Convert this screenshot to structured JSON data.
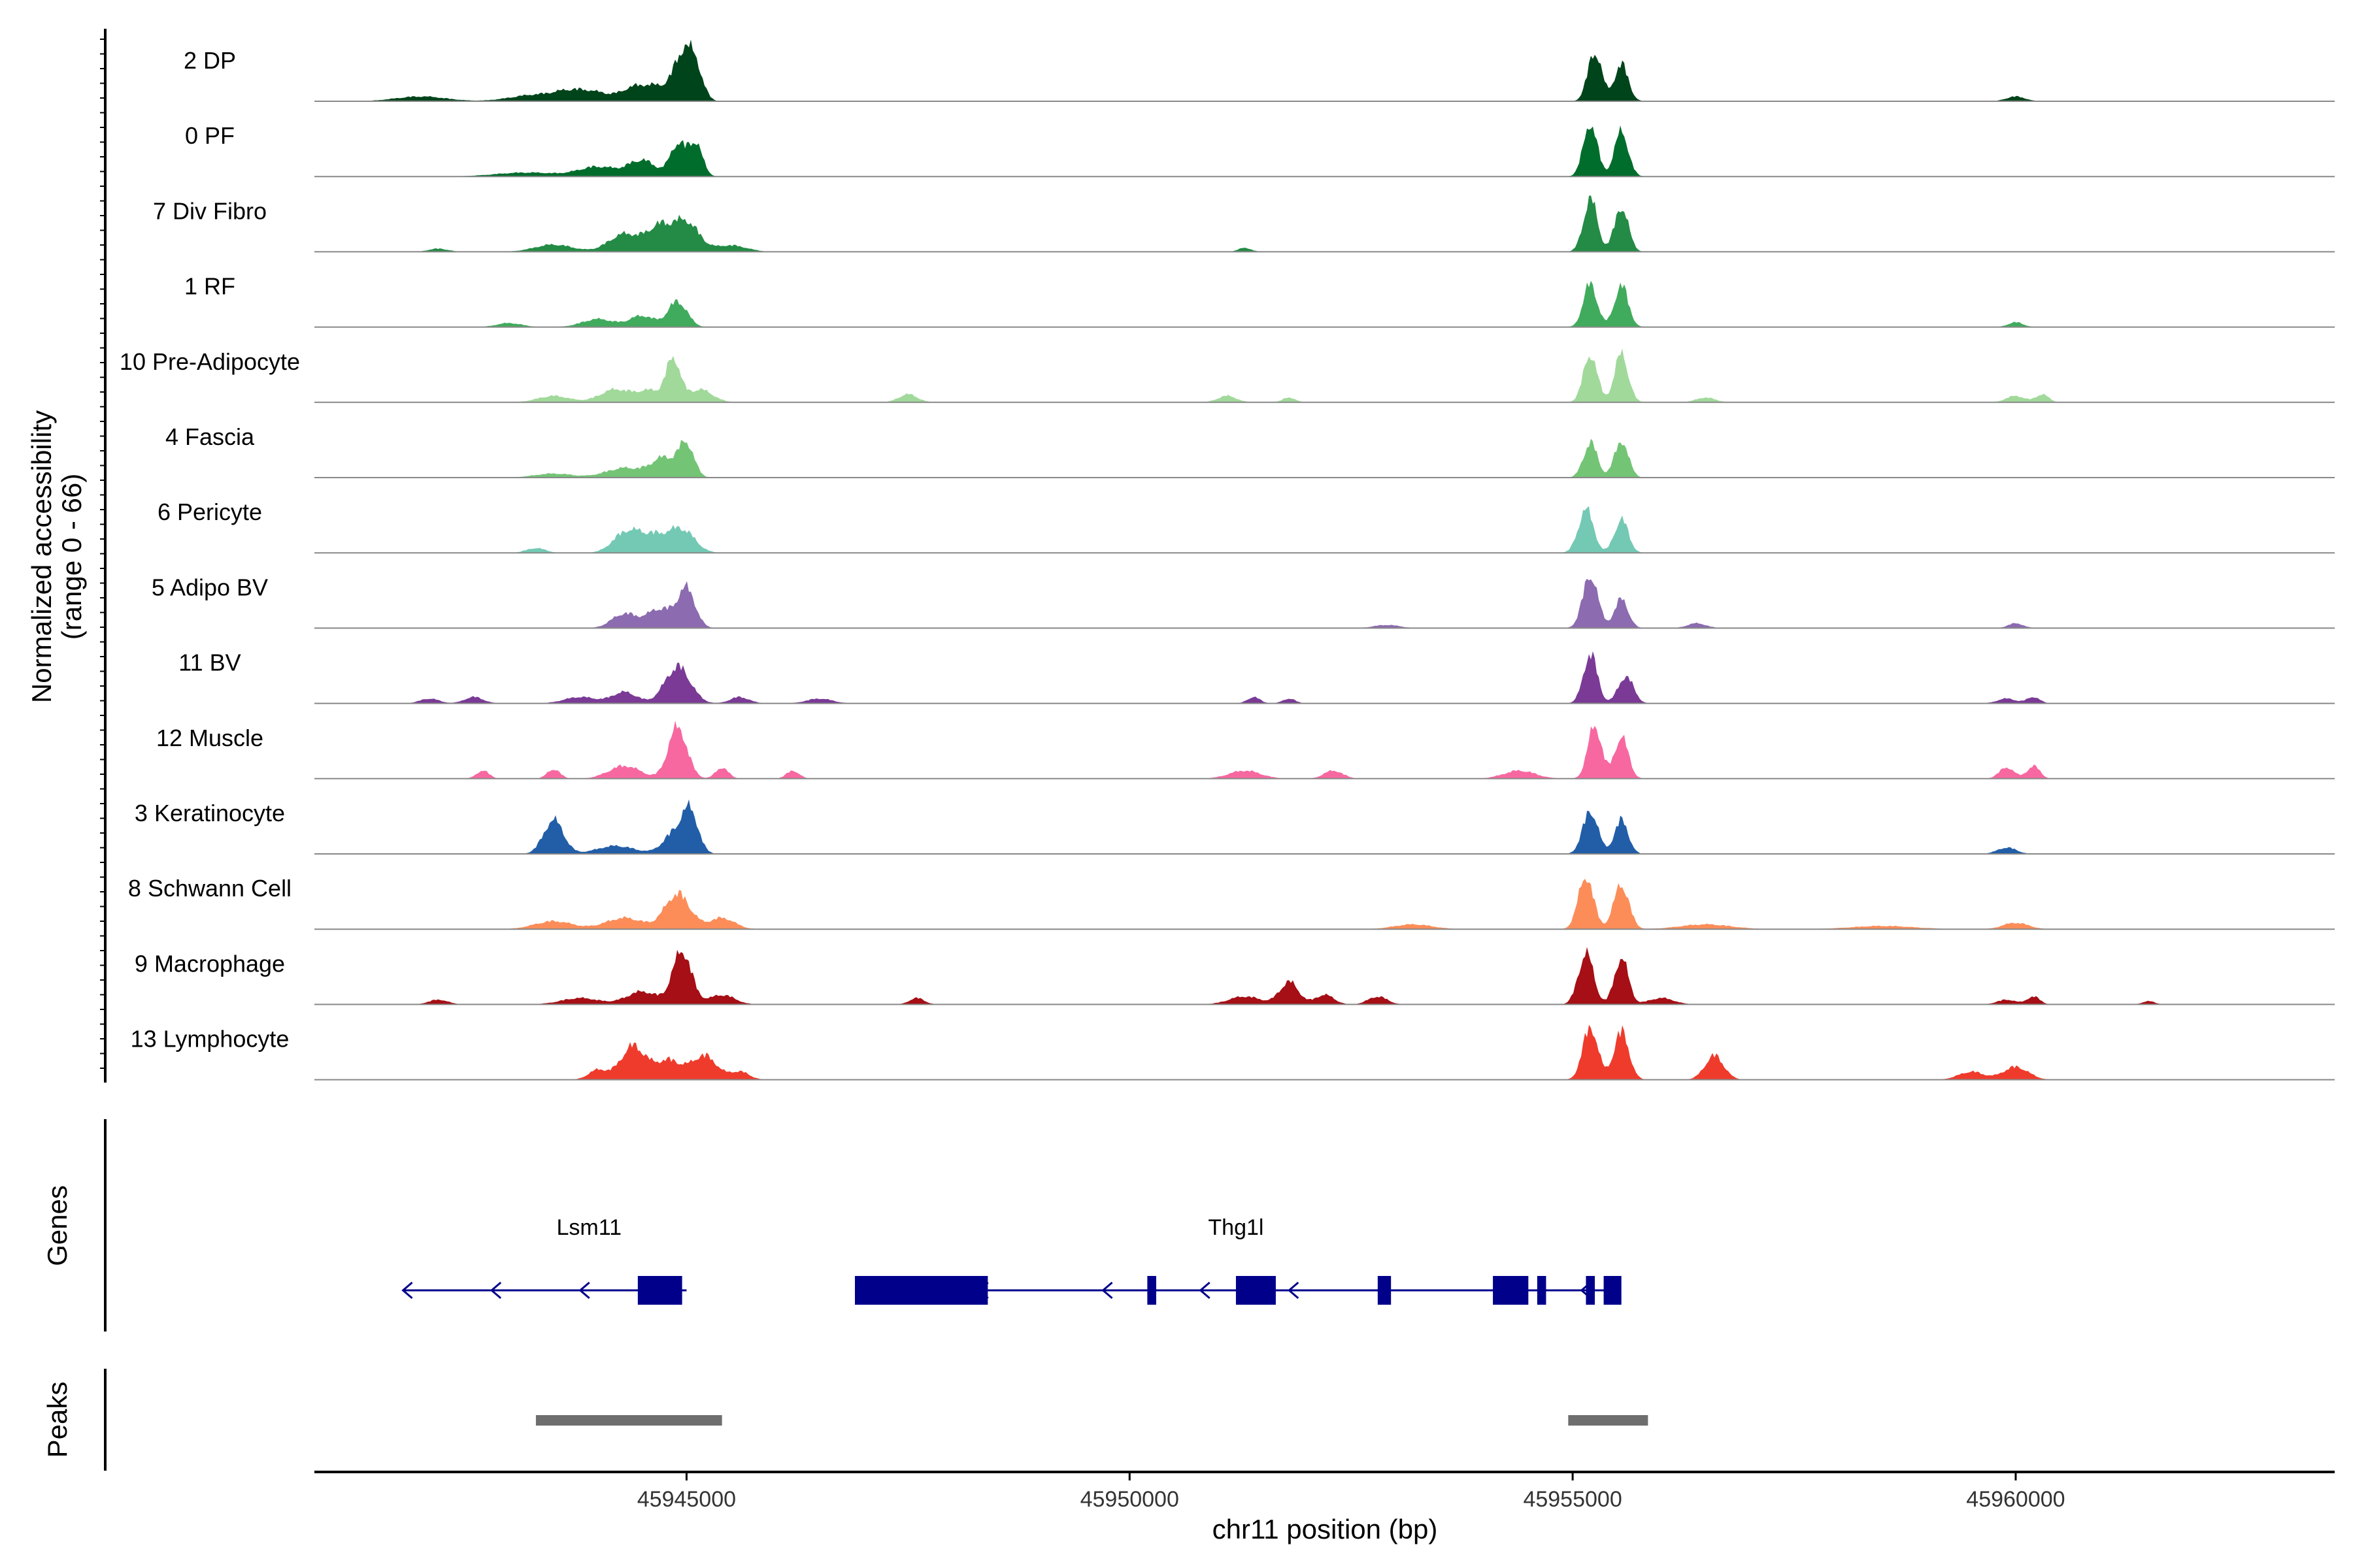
{
  "chart_data": {
    "type": "area",
    "title": "",
    "chromosome": "chr11",
    "xlabel": "chr11 position (bp)",
    "ylabel_line1": "Normalized accessibility",
    "ylabel_line2": "(range 0 - 66)",
    "ylim": [
      0,
      66
    ],
    "xlim": [
      45940800,
      45963600
    ],
    "x_ticks": [
      45945000,
      45950000,
      45955000,
      45960000
    ],
    "x_tick_labels": [
      "45945000",
      "45950000",
      "45955000",
      "45960000"
    ],
    "genes_label": "Genes",
    "peaks_label": "Peaks",
    "tracks": [
      {
        "name": "2 DP",
        "color": "#00441b",
        "peaks": [
          [
            45942000,
            6,
            400
          ],
          [
            45943300,
            8,
            400
          ],
          [
            45943700,
            10,
            250
          ],
          [
            45944000,
            9,
            250
          ],
          [
            45944400,
            14,
            200
          ],
          [
            45944700,
            18,
            250
          ],
          [
            45944950,
            50,
            130
          ],
          [
            45945100,
            42,
            120
          ],
          [
            45955250,
            62,
            110
          ],
          [
            45955550,
            46,
            110
          ],
          [
            45960000,
            6,
            150
          ]
        ]
      },
      {
        "name": "0 PF",
        "color": "#006d2c",
        "peaks": [
          [
            45943200,
            5,
            500
          ],
          [
            45944000,
            12,
            300
          ],
          [
            45944500,
            20,
            220
          ],
          [
            45944900,
            40,
            120
          ],
          [
            45945100,
            42,
            110
          ],
          [
            45955200,
            66,
            110
          ],
          [
            45955550,
            56,
            110
          ]
        ]
      },
      {
        "name": "7 Div Fibro",
        "color": "#238b45",
        "peaks": [
          [
            45942200,
            4,
            150
          ],
          [
            45943500,
            9,
            300
          ],
          [
            45944300,
            22,
            250
          ],
          [
            45944700,
            30,
            200
          ],
          [
            45945000,
            36,
            200
          ],
          [
            45945500,
            8,
            250
          ],
          [
            45951300,
            5,
            100
          ],
          [
            45955200,
            66,
            110
          ],
          [
            45955550,
            56,
            110
          ]
        ]
      },
      {
        "name": "1 RF",
        "color": "#41ab5d",
        "peaks": [
          [
            45943000,
            5,
            200
          ],
          [
            45944000,
            10,
            250
          ],
          [
            45944500,
            14,
            200
          ],
          [
            45944900,
            32,
            150
          ],
          [
            45955200,
            54,
            110
          ],
          [
            45955550,
            52,
            110
          ],
          [
            45960000,
            6,
            120
          ]
        ]
      },
      {
        "name": "10 Pre-Adipocyte",
        "color": "#a1d99b",
        "peaks": [
          [
            45943500,
            8,
            250
          ],
          [
            45944200,
            16,
            250
          ],
          [
            45944600,
            14,
            200
          ],
          [
            45944850,
            52,
            110
          ],
          [
            45945150,
            16,
            200
          ],
          [
            45947500,
            10,
            150
          ],
          [
            45951100,
            8,
            150
          ],
          [
            45951800,
            6,
            100
          ],
          [
            45955200,
            60,
            110
          ],
          [
            45955550,
            60,
            110
          ],
          [
            45956500,
            6,
            150
          ],
          [
            45960000,
            8,
            150
          ],
          [
            45960300,
            10,
            100
          ]
        ]
      },
      {
        "name": "4 Fascia",
        "color": "#74c476",
        "peaks": [
          [
            45943500,
            5,
            300
          ],
          [
            45944300,
            12,
            300
          ],
          [
            45944750,
            24,
            200
          ],
          [
            45945000,
            40,
            120
          ],
          [
            45955200,
            44,
            110
          ],
          [
            45955550,
            46,
            110
          ]
        ]
      },
      {
        "name": "6 Pericyte",
        "color": "#74c9b4",
        "peaks": [
          [
            45943300,
            6,
            150
          ],
          [
            45944300,
            22,
            200
          ],
          [
            45944600,
            22,
            250
          ],
          [
            45944950,
            28,
            200
          ],
          [
            45955150,
            54,
            120
          ],
          [
            45955550,
            42,
            110
          ]
        ]
      },
      {
        "name": "5 Adipo BV",
        "color": "#8c6bb1",
        "peaks": [
          [
            45944300,
            18,
            200
          ],
          [
            45944700,
            24,
            200
          ],
          [
            45945000,
            48,
            140
          ],
          [
            45952900,
            4,
            200
          ],
          [
            45955200,
            66,
            120
          ],
          [
            45955550,
            36,
            110
          ],
          [
            45956400,
            6,
            150
          ],
          [
            45960000,
            6,
            120
          ]
        ]
      },
      {
        "name": "11 BV",
        "color": "#7a3a96",
        "peaks": [
          [
            45942100,
            6,
            150
          ],
          [
            45942600,
            8,
            150
          ],
          [
            45943800,
            8,
            250
          ],
          [
            45944300,
            14,
            200
          ],
          [
            45944900,
            46,
            200
          ],
          [
            45945600,
            8,
            150
          ],
          [
            45946500,
            6,
            200
          ],
          [
            45951400,
            8,
            100
          ],
          [
            45951800,
            6,
            100
          ],
          [
            45955200,
            62,
            110
          ],
          [
            45955600,
            34,
            120
          ],
          [
            45959900,
            6,
            150
          ],
          [
            45960200,
            8,
            100
          ]
        ]
      },
      {
        "name": "12 Muscle",
        "color": "#f768a1",
        "peaks": [
          [
            45942700,
            10,
            100
          ],
          [
            45943500,
            12,
            100
          ],
          [
            45944300,
            16,
            250
          ],
          [
            45944900,
            64,
            150
          ],
          [
            45945400,
            14,
            100
          ],
          [
            45946200,
            10,
            100
          ],
          [
            45951300,
            10,
            250
          ],
          [
            45952300,
            10,
            150
          ],
          [
            45954400,
            10,
            250
          ],
          [
            45955250,
            66,
            110
          ],
          [
            45955550,
            52,
            110
          ],
          [
            45959900,
            14,
            120
          ],
          [
            45960200,
            16,
            100
          ]
        ]
      },
      {
        "name": "3 Keratinocyte",
        "color": "#225ea8",
        "peaks": [
          [
            45943500,
            42,
            160
          ],
          [
            45944200,
            10,
            300
          ],
          [
            45944900,
            30,
            200
          ],
          [
            45945050,
            40,
            120
          ],
          [
            45955200,
            54,
            120
          ],
          [
            45955550,
            42,
            110
          ],
          [
            45959900,
            8,
            150
          ]
        ]
      },
      {
        "name": "8 Schwann Cell",
        "color": "#fc8d59",
        "peaks": [
          [
            45943500,
            10,
            300
          ],
          [
            45944300,
            14,
            300
          ],
          [
            45944900,
            44,
            200
          ],
          [
            45945400,
            14,
            200
          ],
          [
            45953200,
            6,
            300
          ],
          [
            45955150,
            66,
            120
          ],
          [
            45955550,
            56,
            120
          ],
          [
            45956500,
            6,
            400
          ],
          [
            45958500,
            4,
            500
          ],
          [
            45960000,
            8,
            200
          ]
        ]
      },
      {
        "name": "9 Macrophage",
        "color": "#a50f15",
        "peaks": [
          [
            45942200,
            6,
            150
          ],
          [
            45943800,
            8,
            300
          ],
          [
            45944500,
            16,
            250
          ],
          [
            45944950,
            66,
            150
          ],
          [
            45945400,
            12,
            200
          ],
          [
            45947600,
            8,
            120
          ],
          [
            45951300,
            10,
            250
          ],
          [
            45951800,
            28,
            150
          ],
          [
            45952200,
            12,
            150
          ],
          [
            45952800,
            10,
            150
          ],
          [
            45955150,
            64,
            120
          ],
          [
            45955550,
            58,
            110
          ],
          [
            45956000,
            8,
            200
          ],
          [
            45959900,
            6,
            150
          ],
          [
            45960200,
            10,
            100
          ],
          [
            45961500,
            4,
            100
          ]
        ]
      },
      {
        "name": "13 Lymphocyte",
        "color": "#ef3b2c",
        "peaks": [
          [
            45944400,
            42,
            200
          ],
          [
            45944000,
            12,
            150
          ],
          [
            45944800,
            24,
            200
          ],
          [
            45945200,
            30,
            200
          ],
          [
            45945600,
            10,
            150
          ],
          [
            45955200,
            66,
            120
          ],
          [
            45955550,
            60,
            120
          ],
          [
            45956600,
            30,
            150
          ],
          [
            45959500,
            10,
            200
          ],
          [
            45960000,
            16,
            200
          ]
        ]
      }
    ],
    "genes": [
      {
        "name": "Lsm11",
        "label_pos": 45943900,
        "intron": [
          45941800,
          45945000
        ],
        "arrows": [
          45942800,
          45943800,
          45941800
        ],
        "exons": [
          [
            45944450,
            45944950
          ]
        ]
      },
      {
        "name": "Thg1l",
        "label_pos": 45951200,
        "intron": [
          45946900,
          45955500
        ],
        "arrows": [
          45948300,
          45949700,
          45950800,
          45951800,
          45952800,
          45955100
        ],
        "exons": [
          [
            45946900,
            45948400
          ],
          [
            45950200,
            45950300
          ],
          [
            45951200,
            45951650
          ],
          [
            45952800,
            45952950
          ],
          [
            45954100,
            45954500
          ],
          [
            45954600,
            45954700
          ],
          [
            45955150,
            45955250
          ],
          [
            45955350,
            45955550
          ]
        ]
      }
    ],
    "peaks": [
      [
        45943300,
        45945400
      ],
      [
        45954950,
        45955850
      ]
    ]
  }
}
